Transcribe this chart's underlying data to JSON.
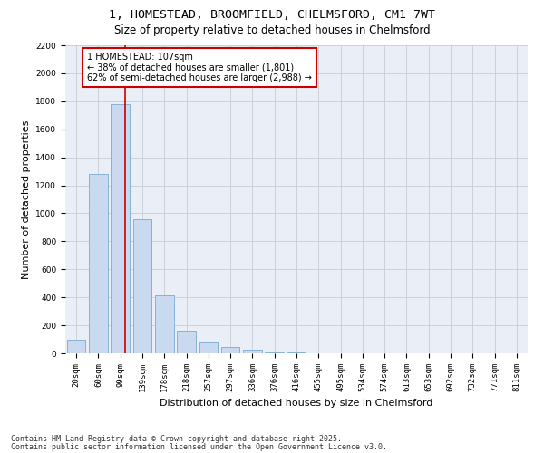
{
  "title_line1": "1, HOMESTEAD, BROOMFIELD, CHELMSFORD, CM1 7WT",
  "title_line2": "Size of property relative to detached houses in Chelmsford",
  "xlabel": "Distribution of detached houses by size in Chelmsford",
  "ylabel": "Number of detached properties",
  "categories": [
    "20sqm",
    "60sqm",
    "99sqm",
    "139sqm",
    "178sqm",
    "218sqm",
    "257sqm",
    "297sqm",
    "336sqm",
    "376sqm",
    "416sqm",
    "455sqm",
    "495sqm",
    "534sqm",
    "574sqm",
    "613sqm",
    "653sqm",
    "692sqm",
    "732sqm",
    "771sqm",
    "811sqm"
  ],
  "values": [
    100,
    1280,
    1780,
    960,
    415,
    160,
    80,
    45,
    25,
    8,
    4,
    2,
    1,
    0,
    0,
    0,
    0,
    0,
    0,
    0,
    0
  ],
  "bar_color": "#c9d9f0",
  "bar_edge_color": "#7aaad0",
  "grid_color": "#c8cdd4",
  "background_color": "#eaeff7",
  "vline_color": "#cc0000",
  "annotation_text": "1 HOMESTEAD: 107sqm\n← 38% of detached houses are smaller (1,801)\n62% of semi-detached houses are larger (2,988) →",
  "annotation_box_color": "#cc0000",
  "ylim": [
    0,
    2200
  ],
  "yticks": [
    0,
    200,
    400,
    600,
    800,
    1000,
    1200,
    1400,
    1600,
    1800,
    2000,
    2200
  ],
  "footer_line1": "Contains HM Land Registry data © Crown copyright and database right 2025.",
  "footer_line2": "Contains public sector information licensed under the Open Government Licence v3.0.",
  "title_fontsize": 9.5,
  "subtitle_fontsize": 8.5,
  "axis_label_fontsize": 8,
  "tick_fontsize": 6.5,
  "annotation_fontsize": 7,
  "footer_fontsize": 6
}
